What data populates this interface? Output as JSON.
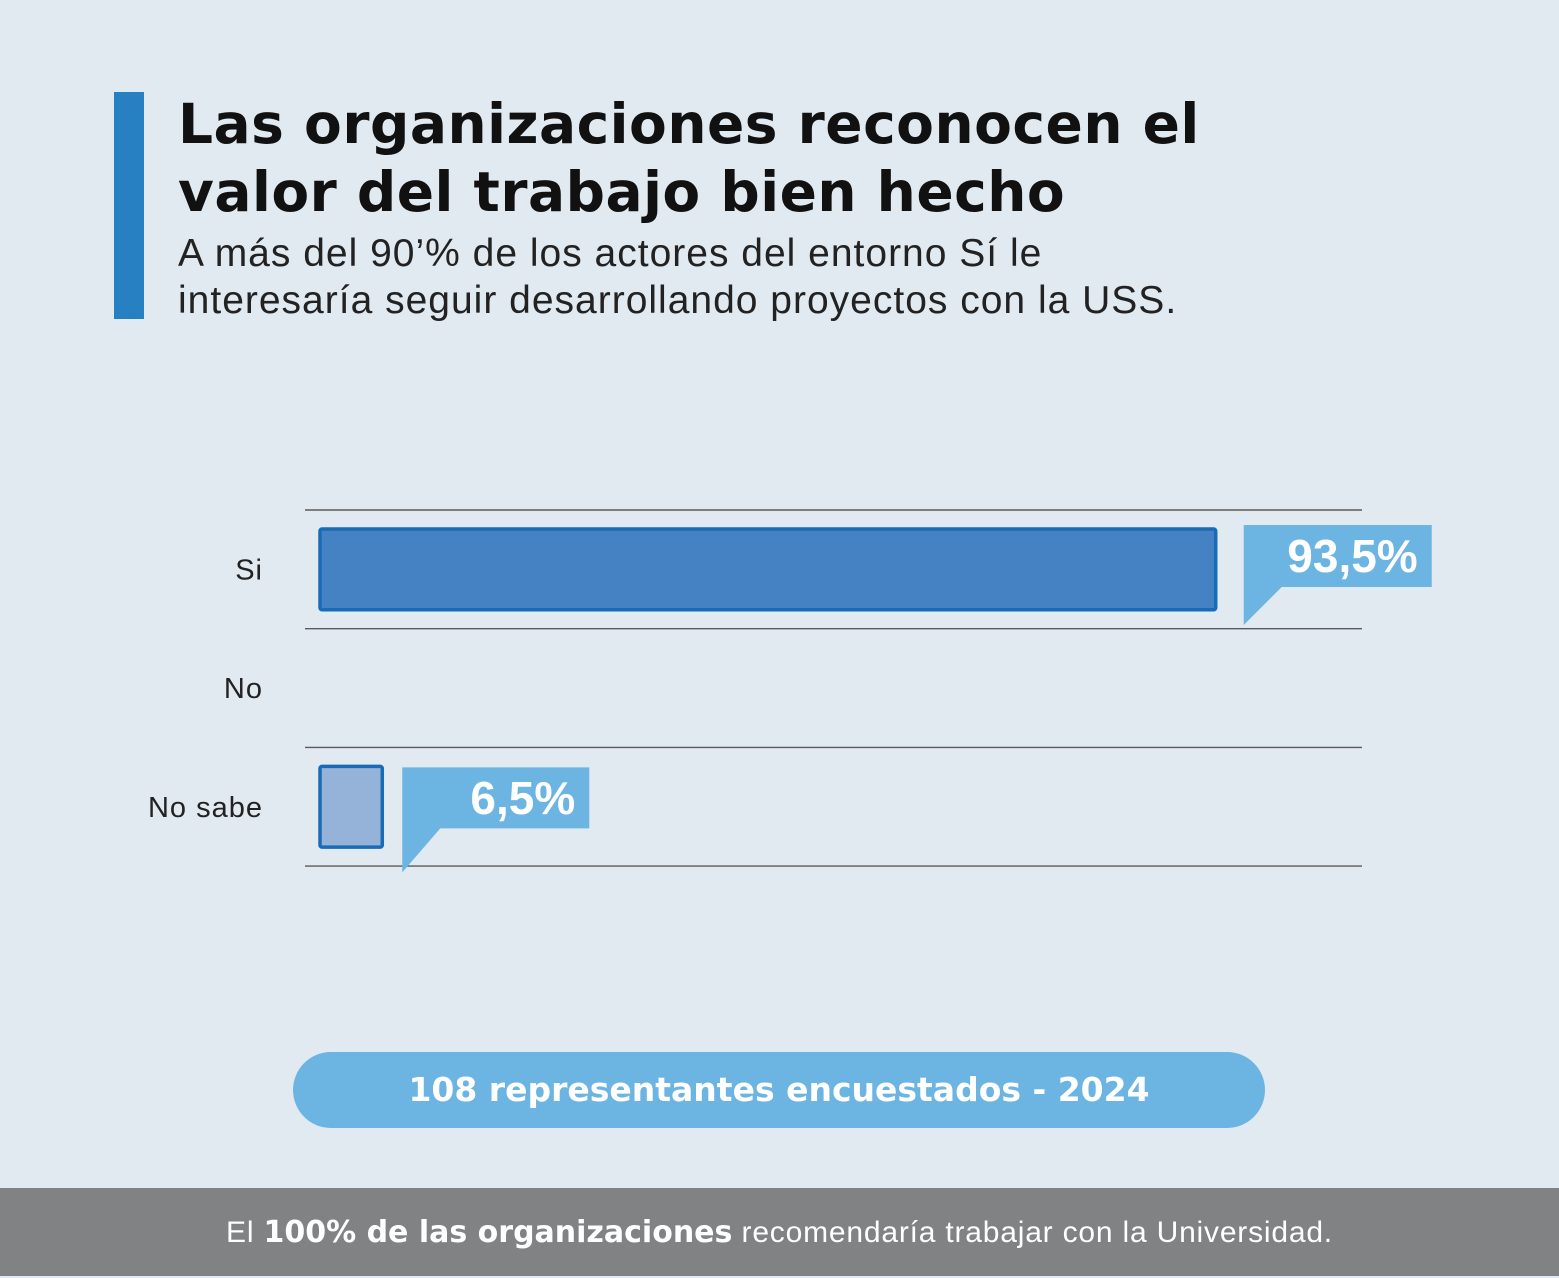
{
  "header": {
    "title_line1": "Las organizaciones reconocen el",
    "title_line2": "valor del trabajo bien hecho",
    "subtitle_line1": "A más del 90’% de los actores del entorno Sí le",
    "subtitle_line2": "interesaría seguir desarrollando proyectos con la USS."
  },
  "chart_data": {
    "type": "bar",
    "orientation": "horizontal",
    "categories": [
      "Si",
      "No",
      "No sabe"
    ],
    "values": [
      93.5,
      0,
      6.5
    ],
    "value_labels": [
      "93,5%",
      "",
      "6,5%"
    ],
    "unit": "%",
    "xlim": [
      0,
      100
    ],
    "title": "Las organizaciones reconocen el valor del trabajo bien hecho",
    "xlabel": "",
    "ylabel": "",
    "grid": true,
    "colors": {
      "main_fill": "#4482c3",
      "main_stroke": "#1a6bb6",
      "minor_fill": "#95b2d9",
      "minor_stroke": "#1a6bb6",
      "label_box": "#6cb4e2",
      "grid": "#5a5a5a"
    }
  },
  "pill": {
    "text": "108 representantes encuestados - 2024"
  },
  "footer": {
    "prefix": "El ",
    "bold": "100% de las organizaciones",
    "suffix": " recomendaría trabajar con la Universidad."
  }
}
